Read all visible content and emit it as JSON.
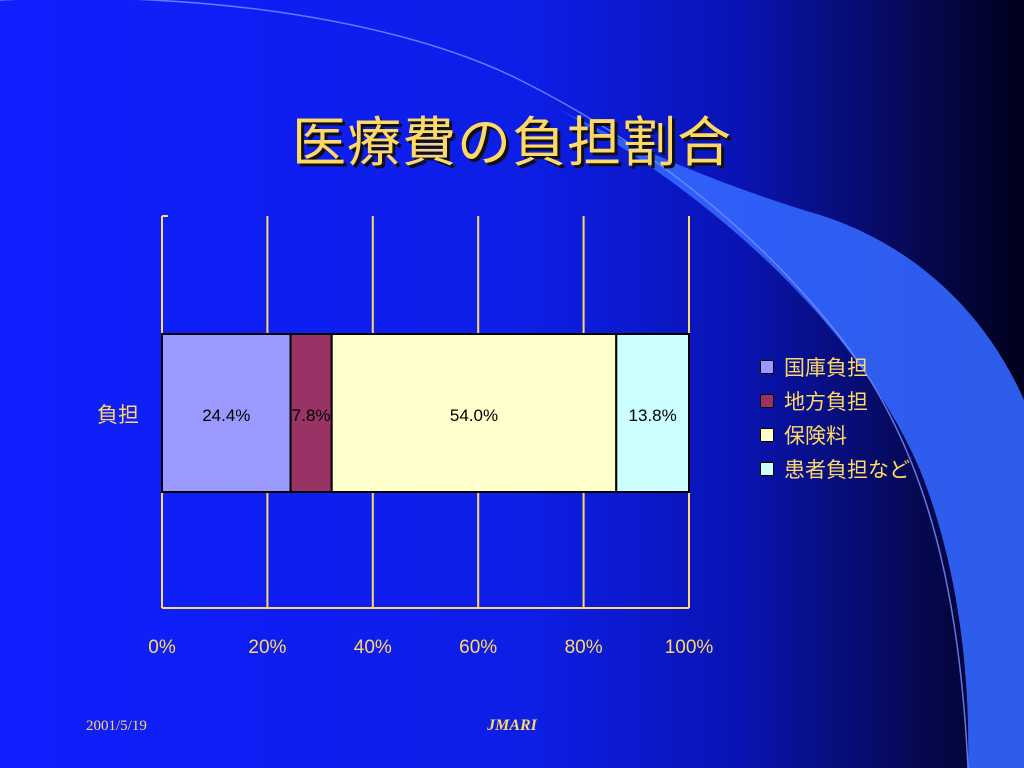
{
  "slide": {
    "title": "医療費の負担割合",
    "footer_date": "2001/5/19",
    "footer_org": "JMARI"
  },
  "colors": {
    "background": "#0f1fff",
    "text_accent": "#ffd966",
    "grid": "#ffd966"
  },
  "chart_data": {
    "type": "bar",
    "orientation": "horizontal",
    "stacked": "percent",
    "categories": [
      "負担"
    ],
    "series": [
      {
        "name": "国庫負担",
        "values": [
          24.4
        ],
        "label": "24.4%",
        "color": "#9999ff"
      },
      {
        "name": "地方負担",
        "values": [
          7.8
        ],
        "label": "7.8%",
        "color": "#993366"
      },
      {
        "name": "保険料",
        "values": [
          54.0
        ],
        "label": "54.0%",
        "color": "#ffffcc"
      },
      {
        "name": "患者負担など",
        "values": [
          13.8
        ],
        "label": "13.8%",
        "color": "#ccffff"
      }
    ],
    "xlim": [
      0,
      100
    ],
    "xticks": [
      0,
      20,
      40,
      60,
      80,
      100
    ],
    "xtick_labels": [
      "0%",
      "20%",
      "40%",
      "60%",
      "80%",
      "100%"
    ],
    "grid": true,
    "legend_position": "right"
  }
}
